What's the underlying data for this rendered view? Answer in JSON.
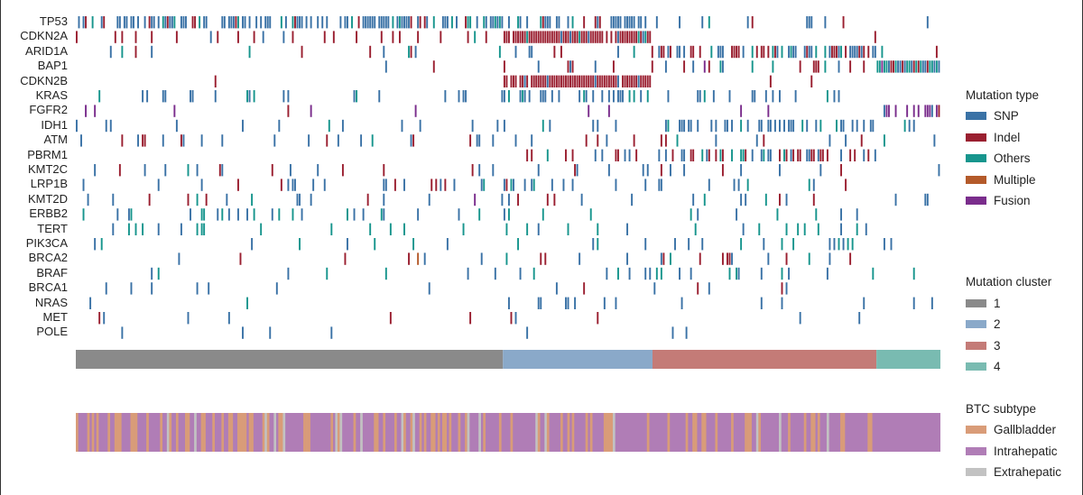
{
  "chart_data": {
    "type": "heatmap",
    "genes": [
      "TP53",
      "CDKN2A",
      "ARID1A",
      "BAP1",
      "CDKN2B",
      "KRAS",
      "FGFR2",
      "IDH1",
      "ATM",
      "PBRM1",
      "KMT2C",
      "LRP1B",
      "KMT2D",
      "ERBB2",
      "TERT",
      "PIK3CA",
      "BRCA2",
      "BRAF",
      "BRCA1",
      "NRAS",
      "MET",
      "POLE"
    ],
    "mutation_frequency_by_cluster": {
      "TP53": [
        0.6,
        0.5,
        0.15,
        0.05
      ],
      "CDKN2A": [
        0.12,
        0.95,
        0.03,
        0
      ],
      "ARID1A": [
        0.05,
        0.12,
        0.5,
        0.05
      ],
      "BAP1": [
        0.01,
        0.15,
        0.15,
        0.95
      ],
      "CDKN2B": [
        0.02,
        0.9,
        0.01,
        0
      ],
      "KRAS": [
        0.12,
        0.35,
        0.1,
        0
      ],
      "FGFR2": [
        0.05,
        0.05,
        0.03,
        0.5
      ],
      "IDH1": [
        0.08,
        0.08,
        0.35,
        0.05
      ],
      "ATM": [
        0.15,
        0.08,
        0.1,
        0.08
      ],
      "PBRM1": [
        0.02,
        0.12,
        0.35,
        0
      ],
      "KMT2C": [
        0.1,
        0.15,
        0.12,
        0.05
      ],
      "LRP1B": [
        0.12,
        0.15,
        0.1,
        0.05
      ],
      "KMT2D": [
        0.08,
        0.1,
        0.1,
        0.1
      ],
      "ERBB2": [
        0.1,
        0.08,
        0.06,
        0
      ],
      "TERT": [
        0.12,
        0.1,
        0.06,
        0
      ],
      "PIK3CA": [
        0.07,
        0.08,
        0.1,
        0.02
      ],
      "BRCA2": [
        0.05,
        0.12,
        0.1,
        0.02
      ],
      "BRAF": [
        0.03,
        0.12,
        0.08,
        0.05
      ],
      "BRCA1": [
        0.05,
        0.08,
        0.05,
        0
      ],
      "NRAS": [
        0.02,
        0.08,
        0.06,
        0.05
      ],
      "MET": [
        0.02,
        0.05,
        0.04,
        0
      ],
      "POLE": [
        0.01,
        0.03,
        0.02,
        0
      ]
    },
    "mutation_type_mix": {
      "TP53": {
        "SNP": 0.75,
        "Indel": 0.1,
        "Others": 0.15
      },
      "CDKN2A": {
        "SNP": 0.1,
        "Indel": 0.85,
        "Others": 0.05
      },
      "ARID1A": {
        "SNP": 0.35,
        "Indel": 0.5,
        "Others": 0.15
      },
      "BAP1": {
        "SNP": 0.4,
        "Indel": 0.3,
        "Others": 0.25,
        "Fusion": 0.05
      },
      "CDKN2B": {
        "SNP": 0.1,
        "Indel": 0.9
      },
      "KRAS": {
        "SNP": 0.85,
        "Others": 0.15
      },
      "FGFR2": {
        "SNP": 0.2,
        "Fusion": 0.7,
        "Indel": 0.1
      },
      "IDH1": {
        "SNP": 0.9,
        "Others": 0.1
      },
      "ATM": {
        "SNP": 0.6,
        "Indel": 0.25,
        "Others": 0.15
      },
      "PBRM1": {
        "SNP": 0.4,
        "Indel": 0.5,
        "Others": 0.1
      },
      "KMT2C": {
        "SNP": 0.55,
        "Indel": 0.3,
        "Others": 0.15
      },
      "LRP1B": {
        "SNP": 0.7,
        "Indel": 0.15,
        "Others": 0.15
      },
      "KMT2D": {
        "SNP": 0.5,
        "Indel": 0.35,
        "Others": 0.1,
        "Fusion": 0.05
      },
      "ERBB2": {
        "SNP": 0.5,
        "Others": 0.5
      },
      "TERT": {
        "SNP": 0.3,
        "Others": 0.7
      },
      "PIK3CA": {
        "SNP": 0.7,
        "Others": 0.3
      },
      "BRCA2": {
        "SNP": 0.5,
        "Indel": 0.35,
        "Others": 0.1,
        "Multiple": 0.05
      },
      "BRAF": {
        "SNP": 0.7,
        "Others": 0.3
      },
      "BRCA1": {
        "SNP": 0.6,
        "Indel": 0.3,
        "Others": 0.1
      },
      "NRAS": {
        "SNP": 0.8,
        "Others": 0.2
      },
      "MET": {
        "SNP": 0.6,
        "Indel": 0.4
      },
      "POLE": {
        "SNP": 1.0
      }
    },
    "cluster_proportions": [
      0.494,
      0.173,
      0.259,
      0.074
    ],
    "subtype_proportions_by_cluster": [
      {
        "Gallbladder": 0.3,
        "Extrahepatic": 0.08
      },
      {
        "Gallbladder": 0.25,
        "Extrahepatic": 0.05
      },
      {
        "Gallbladder": 0.15,
        "Extrahepatic": 0.05
      },
      {
        "Gallbladder": 0.05,
        "Extrahepatic": 0.02
      }
    ]
  },
  "legend": {
    "mutation_type": {
      "title": "Mutation type",
      "items": [
        {
          "label": "SNP",
          "color": "#3a72a6"
        },
        {
          "label": "Indel",
          "color": "#9a1f30"
        },
        {
          "label": "Others",
          "color": "#17958d"
        },
        {
          "label": "Multiple",
          "color": "#b45a2a"
        },
        {
          "label": "Fusion",
          "color": "#7a2d8c"
        }
      ]
    },
    "mutation_cluster": {
      "title": "Mutation cluster",
      "items": [
        {
          "label": "1",
          "color": "#8a8a8a"
        },
        {
          "label": "2",
          "color": "#8aa9c9"
        },
        {
          "label": "3",
          "color": "#c47b77"
        },
        {
          "label": "4",
          "color": "#79bbb1"
        }
      ]
    },
    "btc_subtype": {
      "title": "BTC subtype",
      "items": [
        {
          "label": "Gallbladder",
          "color": "#d99c78"
        },
        {
          "label": "Intrahepatic",
          "color": "#b07db6"
        },
        {
          "label": "Extrahepatic",
          "color": "#c2c2c2"
        }
      ]
    }
  }
}
